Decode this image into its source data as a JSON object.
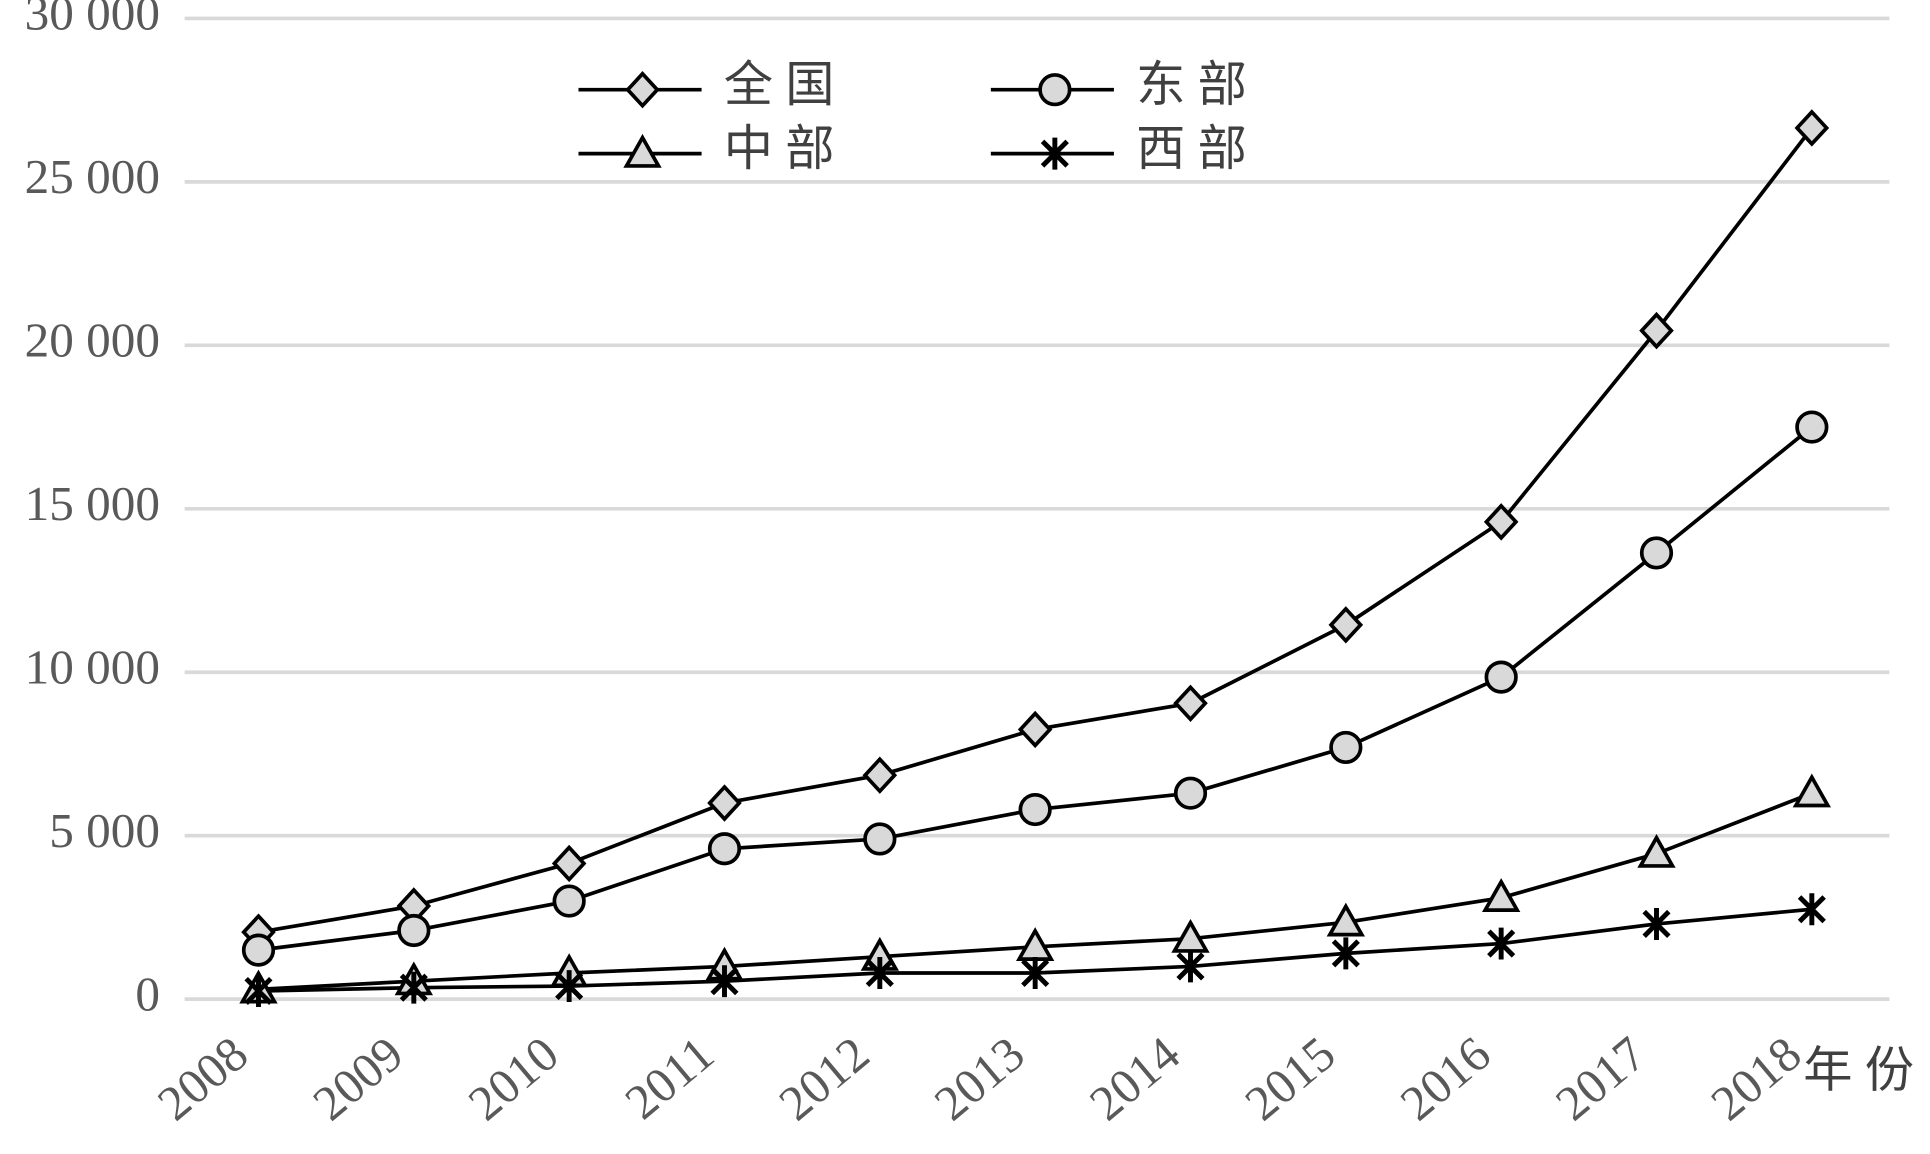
{
  "chart_data": {
    "type": "line",
    "categories": [
      "2008",
      "2009",
      "2010",
      "2011",
      "2012",
      "2013",
      "2014",
      "2015",
      "2016",
      "2017",
      "2018"
    ],
    "x_label": "年份",
    "series": [
      {
        "name": "全国",
        "marker": "diamond",
        "values": [
          2050,
          2850,
          4150,
          6000,
          6850,
          8250,
          9050,
          11450,
          14600,
          20450,
          26650
        ]
      },
      {
        "name": "东部",
        "marker": "circle",
        "values": [
          1500,
          2100,
          3000,
          4600,
          4900,
          5800,
          6300,
          7700,
          9850,
          13650,
          17500
        ]
      },
      {
        "name": "中部",
        "marker": "triangle",
        "values": [
          300,
          550,
          800,
          1000,
          1300,
          1600,
          1850,
          2350,
          3100,
          4450,
          6300
        ]
      },
      {
        "name": "西部",
        "marker": "asterisk",
        "values": [
          250,
          350,
          400,
          550,
          800,
          800,
          1000,
          1400,
          1700,
          2300,
          2750
        ]
      }
    ],
    "ylim": [
      0,
      30000
    ],
    "yticks": [
      0,
      {
        "value": 5000,
        "label": "5 000"
      },
      {
        "value": 10000,
        "label": "10 000"
      },
      {
        "value": 15000,
        "label": "15 000"
      },
      {
        "value": 20000,
        "label": "20 000"
      },
      {
        "value": 25000,
        "label": "25 000"
      },
      {
        "value": 30000,
        "label": "30 000"
      }
    ],
    "grid": true,
    "line_color": "#000000",
    "marker_fill": "#d9d9d9"
  }
}
